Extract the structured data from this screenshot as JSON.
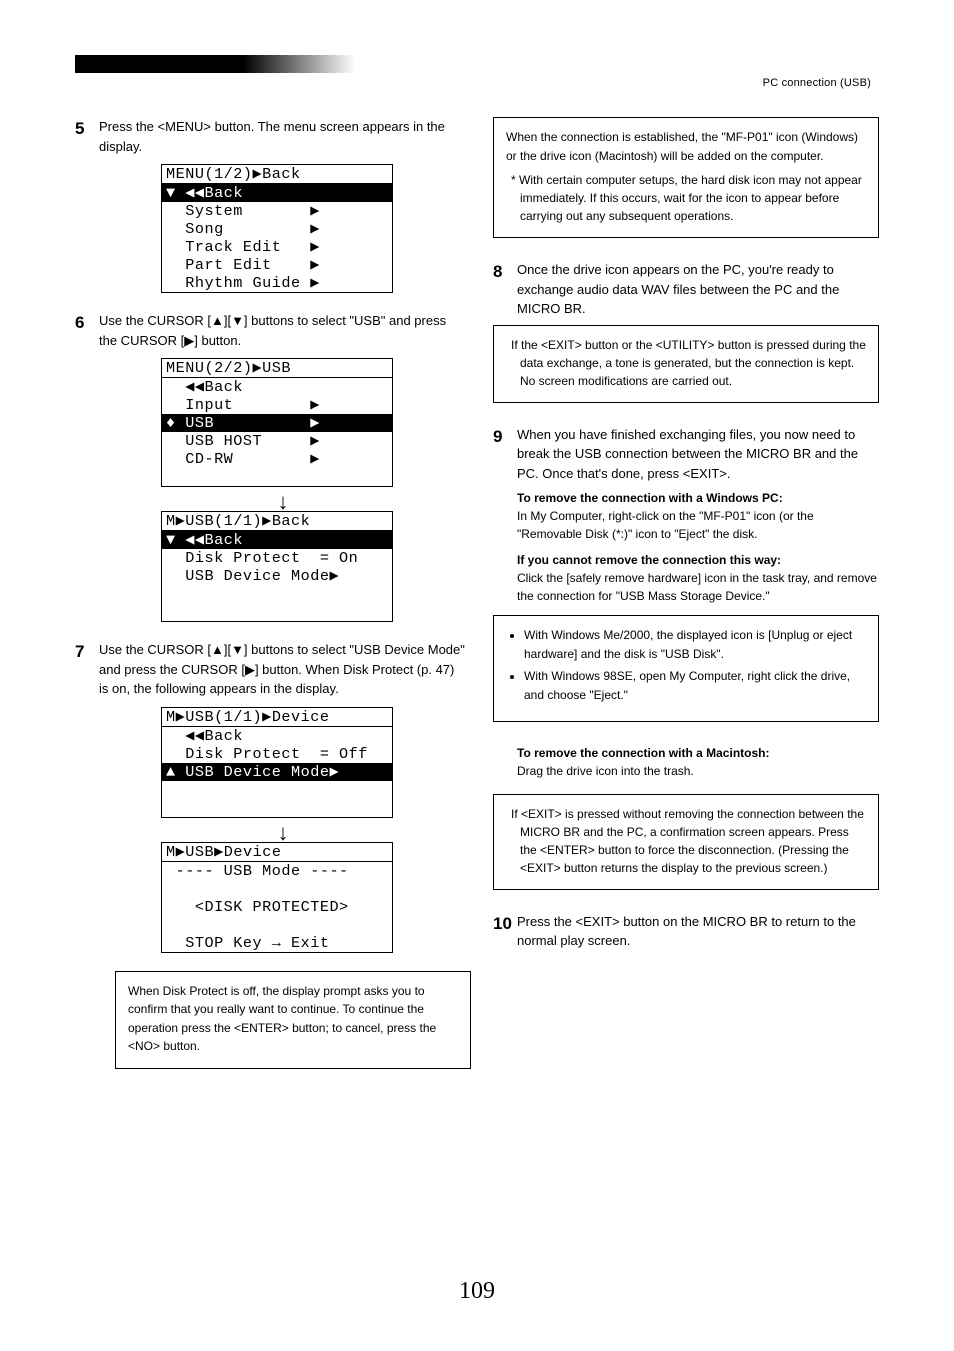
{
  "header_link": "PC connection (USB)",
  "left": {
    "s5": {
      "n": "5",
      "t": "Press the <MENU> button. The menu screen appears in the display."
    },
    "s6": {
      "n": "6",
      "t": "Use the CURSOR [▲][▼] buttons to select \"USB\" and press the CURSOR [▶] button."
    },
    "s7": {
      "n": "7",
      "t": "Use the CURSOR [▲][▼] buttons to select \"USB Device Mode\" and press the CURSOR [▶] button. When Disk Protect (p. 47) is on, the following appears in the display."
    }
  },
  "wide_note": "When Disk Protect is off, the display prompt asks you to confirm that you really want to continue. To continue the operation press the <ENTER> button; to cancel, press the <NO> button.",
  "right": {
    "box1": [
      "When the connection is established, the \"MF-P01\" icon (Windows) or the drive icon (Macintosh) will be added on the computer.",
      "* With certain computer setups, the hard disk icon may not appear immediately. If this occurs, wait for the icon to appear before carrying out any subsequent operations."
    ],
    "s8": {
      "n": "8",
      "t": "Once the drive icon appears on the PC, you're ready to exchange audio data WAV files between the PC and the MICRO BR."
    },
    "box_star": "If the <EXIT> button or the <UTILITY> button is pressed during the data exchange, a tone is generated, but the connection is kept. No screen modifications are carried out.",
    "s9": {
      "n": "9",
      "t": "When you have finished exchanging files, you now need to break the USB connection between the MICRO BR and the PC. Once that's done, press <EXIT>."
    },
    "quit_win": "To remove the connection with a Windows PC:",
    "quit_win_sub": "In My Computer, right-click on the \"MF-P01\" icon (or the \"Removable Disk (*:)\" icon to \"Eject\" the disk.",
    "quit_win_cannot": "If you cannot remove the connection this way:",
    "quit_win_cannot_sub": "Click the [safely remove hardware] icon in the task tray, and remove the connection for \"USB Mass Storage Device.\"",
    "box2_items": [
      "With Windows Me/2000, the displayed icon is [Unplug or eject hardware] and the disk is \"USB Disk\".",
      "With Windows 98SE, open My Computer, right click the drive, and choose \"Eject.\""
    ],
    "quit_mac": "To remove the connection with a Macintosh:",
    "quit_mac_sub": "Drag the drive icon into the trash.",
    "box3_star": "If <EXIT> is pressed without removing the connection between the MICRO BR and the PC, a confirmation screen appears. Press the <ENTER> button to force the disconnection. (Pressing the <EXIT> button returns the display to the previous screen.)",
    "s10": {
      "n": "10",
      "t": "Press the <EXIT> button on the MICRO BR to return to the normal play screen."
    }
  },
  "lcd1": {
    "title": "MENU(1/2)▶Back",
    "lines": [
      {
        "t": "▼ ◀◀Back",
        "inv": true
      },
      {
        "t": "  System       ▶"
      },
      {
        "t": "  Song         ▶"
      },
      {
        "t": "  Track Edit   ▶"
      },
      {
        "t": "  Part Edit    ▶"
      },
      {
        "t": "  Rhythm Guide ▶"
      }
    ]
  },
  "lcd2": {
    "title": "MENU(2/2)▶USB",
    "lines": [
      {
        "t": "  ◀◀Back"
      },
      {
        "t": "  Input        ▶"
      },
      {
        "t": "♦ USB          ▶",
        "inv": true
      },
      {
        "t": "  USB HOST     ▶"
      },
      {
        "t": "  CD-RW        ▶"
      },
      {
        "t": " "
      }
    ]
  },
  "lcd3": {
    "title": "M▶USB(1/1)▶Back",
    "lines": [
      {
        "t": "▼ ◀◀Back",
        "inv": true
      },
      {
        "t": "  Disk Protect  = On"
      },
      {
        "t": "  USB Device Mode▶"
      },
      {
        "t": " "
      },
      {
        "t": " "
      }
    ]
  },
  "lcd4": {
    "title": "M▶USB(1/1)▶Device",
    "lines": [
      {
        "t": "  ◀◀Back"
      },
      {
        "t": "  Disk Protect  = Off"
      },
      {
        "t": "▲ USB Device Mode▶",
        "inv": true
      },
      {
        "t": " "
      },
      {
        "t": " "
      }
    ]
  },
  "lcd5": {
    "title": "M▶USB▶Device",
    "lines": [
      {
        "t": " ---- USB Mode ----"
      },
      {
        "t": " "
      },
      {
        "t": "   <DISK PROTECTED>"
      },
      {
        "t": " "
      },
      {
        "t": "  STOP Key → Exit"
      }
    ]
  },
  "page_number": "109"
}
